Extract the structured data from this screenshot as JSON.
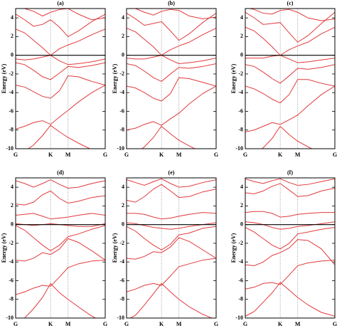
{
  "chart_data": [
    {
      "type": "line",
      "title": "(a)",
      "ylabel": "Energy (eV)",
      "color": "#e23a3c",
      "grid": true,
      "hline": 0,
      "x": [
        0,
        0.1,
        0.2,
        0.3,
        0.39,
        0.49,
        0.585,
        0.7,
        0.85,
        1
      ],
      "xlim": [
        0,
        1
      ],
      "xticks": [
        {
          "value": 0,
          "label": "G"
        },
        {
          "value": 0.39,
          "label": "K"
        },
        {
          "value": 0.585,
          "label": "M"
        },
        {
          "value": 1,
          "label": "G"
        }
      ],
      "ylim": [
        -10,
        5
      ],
      "yticks": [
        -10,
        -8,
        -6,
        -4,
        -2,
        0,
        2,
        4
      ],
      "series": [
        {
          "values": [
            -10.6,
            -10.3,
            -9.6,
            -8.6,
            -7.5,
            -8.2,
            -8.8,
            -9.4,
            -10.1,
            -10.6
          ]
        },
        {
          "values": [
            -7.9,
            -7.6,
            -7.2,
            -7.0,
            -7.4,
            -6.6,
            -5.9,
            -5.0,
            -4.0,
            -3.2
          ]
        },
        {
          "values": [
            -3.2,
            -3.4,
            -3.9,
            -4.4,
            -4.6,
            -3.8,
            -2.2,
            -2.3,
            -2.8,
            -3.2
          ]
        },
        {
          "values": [
            -0.8,
            -1.0,
            -1.6,
            -2.3,
            -2.6,
            -1.9,
            -1.2,
            -1.3,
            -1.1,
            -0.8
          ]
        },
        {
          "values": [
            -0.4,
            -0.5,
            -0.4,
            -0.2,
            0,
            -0.6,
            -1.0,
            -0.9,
            -0.7,
            -0.4
          ]
        },
        {
          "values": [
            2.8,
            2.4,
            1.6,
            0.8,
            0,
            0.7,
            1.1,
            1.5,
            2.2,
            2.8
          ]
        },
        {
          "values": [
            4.4,
            3.8,
            3.1,
            3.3,
            3.8,
            3.0,
            2.0,
            2.6,
            3.6,
            4.4
          ]
        },
        {
          "values": [
            5.2,
            5.0,
            4.7,
            4.2,
            4.6,
            4.9,
            5.0,
            4.4,
            3.8,
            4.0
          ]
        }
      ]
    },
    {
      "type": "line",
      "title": "(b)",
      "ylabel": "Energy (eV)",
      "color": "#e23a3c",
      "grid": true,
      "hline": 0,
      "x": [
        0,
        0.1,
        0.2,
        0.3,
        0.39,
        0.49,
        0.585,
        0.7,
        0.85,
        1
      ],
      "xlim": [
        0,
        1
      ],
      "xticks": [
        {
          "value": 0,
          "label": "G"
        },
        {
          "value": 0.39,
          "label": "K"
        },
        {
          "value": 0.585,
          "label": "M"
        },
        {
          "value": 1,
          "label": "G"
        }
      ],
      "ylim": [
        -10,
        5
      ],
      "yticks": [
        -10,
        -8,
        -6,
        -4,
        -2,
        0,
        2,
        4
      ],
      "series": [
        {
          "values": [
            -10.8,
            -10.5,
            -9.8,
            -8.8,
            -7.6,
            -8.4,
            -9.1,
            -9.7,
            -10.4,
            -10.8
          ]
        },
        {
          "values": [
            -8.0,
            -7.8,
            -7.4,
            -7.1,
            -7.5,
            -6.8,
            -6.2,
            -5.2,
            -4.1,
            -3.3
          ]
        },
        {
          "values": [
            -3.3,
            -3.5,
            -4.0,
            -4.6,
            -4.9,
            -4.1,
            -2.4,
            -2.5,
            -2.9,
            -3.3
          ]
        },
        {
          "values": [
            -0.9,
            -1.1,
            -1.7,
            -2.4,
            -2.8,
            -2.0,
            -1.3,
            -1.4,
            -1.2,
            -0.9
          ]
        },
        {
          "values": [
            -0.3,
            -0.4,
            -0.4,
            -0.2,
            0,
            -0.5,
            -0.9,
            -0.8,
            -0.6,
            -0.3
          ]
        },
        {
          "values": [
            2.9,
            2.5,
            1.7,
            0.9,
            0,
            0.6,
            1.0,
            1.4,
            2.2,
            2.9
          ]
        },
        {
          "values": [
            4.5,
            3.9,
            3.2,
            3.4,
            3.6,
            2.6,
            1.6,
            2.3,
            3.5,
            4.5
          ]
        },
        {
          "values": [
            5.2,
            5.0,
            4.6,
            4.3,
            4.7,
            4.9,
            4.8,
            4.2,
            3.9,
            4.1
          ]
        }
      ]
    },
    {
      "type": "line",
      "title": "(c)",
      "ylabel": "Energy (eV)",
      "color": "#e23a3c",
      "grid": true,
      "hline": 0,
      "x": [
        0,
        0.1,
        0.2,
        0.3,
        0.39,
        0.49,
        0.585,
        0.7,
        0.85,
        1
      ],
      "xlim": [
        0,
        1
      ],
      "xticks": [
        {
          "value": 0,
          "label": "G"
        },
        {
          "value": 0.39,
          "label": "K"
        },
        {
          "value": 0.585,
          "label": "M"
        },
        {
          "value": 1,
          "label": "G"
        }
      ],
      "ylim": [
        -10,
        5
      ],
      "yticks": [
        -10,
        -8,
        -6,
        -4,
        -2,
        0,
        2,
        4
      ],
      "series": [
        {
          "values": [
            -10.9,
            -10.6,
            -9.9,
            -8.9,
            -7.6,
            -8.5,
            -9.2,
            -9.8,
            -10.5,
            -10.9
          ]
        },
        {
          "values": [
            -8.2,
            -8.0,
            -7.6,
            -7.2,
            -7.4,
            -6.9,
            -6.4,
            -5.4,
            -4.2,
            -3.3
          ]
        },
        {
          "values": [
            -3.3,
            -3.6,
            -4.1,
            -4.7,
            -5.1,
            -4.2,
            -2.6,
            -2.6,
            -3.0,
            -3.3
          ]
        },
        {
          "values": [
            -1.0,
            -1.2,
            -1.8,
            -2.5,
            -3.0,
            -2.2,
            -1.4,
            -1.5,
            -1.3,
            -1.0
          ]
        },
        {
          "values": [
            -0.3,
            -0.3,
            -0.3,
            -0.1,
            0,
            -0.4,
            -0.8,
            -0.7,
            -0.5,
            -0.3
          ]
        },
        {
          "values": [
            3.0,
            2.6,
            1.8,
            0.9,
            0,
            0.6,
            1.0,
            1.4,
            2.3,
            3.0
          ]
        },
        {
          "values": [
            4.6,
            4.0,
            3.3,
            3.4,
            3.5,
            2.4,
            1.4,
            2.1,
            3.4,
            4.6
          ]
        },
        {
          "values": [
            5.1,
            4.9,
            4.5,
            4.4,
            4.8,
            4.9,
            4.6,
            4.0,
            3.7,
            3.9
          ]
        }
      ]
    },
    {
      "type": "line",
      "title": "(d)",
      "ylabel": "Energy (eV)",
      "color": "#e23a3c",
      "grid": true,
      "hline": 0,
      "x": [
        0,
        0.1,
        0.2,
        0.3,
        0.39,
        0.49,
        0.585,
        0.7,
        0.85,
        1
      ],
      "xlim": [
        0,
        1
      ],
      "xticks": [
        {
          "value": 0,
          "label": "G"
        },
        {
          "value": 0.39,
          "label": "K"
        },
        {
          "value": 0.585,
          "label": "M"
        },
        {
          "value": 1,
          "label": "G"
        }
      ],
      "ylim": [
        -10,
        5
      ],
      "yticks": [
        -10,
        -8,
        -6,
        -4,
        -2,
        0,
        2,
        4
      ],
      "series": [
        {
          "values": [
            -10.5,
            -10.0,
            -9.0,
            -7.8,
            -6.3,
            -7.3,
            -8.0,
            -8.8,
            -9.8,
            -10.5
          ]
        },
        {
          "values": [
            -7.5,
            -7.2,
            -6.8,
            -6.5,
            -6.6,
            -5.6,
            -4.6,
            -4.2,
            -3.9,
            -3.8
          ]
        },
        {
          "values": [
            -3.8,
            -3.9,
            -3.6,
            -3.0,
            -3.2,
            -2.6,
            -1.5,
            -1.9,
            -2.8,
            -3.8
          ]
        },
        {
          "values": [
            -0.1,
            -0.6,
            -1.4,
            -2.2,
            -2.8,
            -2.2,
            -1.3,
            -1.0,
            -0.5,
            -0.1
          ]
        },
        {
          "values": [
            0.1,
            0,
            -0.1,
            0,
            0.1,
            0,
            -0.1,
            -0.2,
            -0.2,
            0.1
          ]
        },
        {
          "values": [
            1.0,
            1.1,
            1.2,
            0.9,
            0.6,
            0.7,
            0.8,
            1.0,
            1.2,
            1.0
          ]
        },
        {
          "values": [
            2.2,
            2.1,
            2.4,
            3.2,
            3.6,
            2.8,
            2.3,
            2.5,
            2.9,
            3.1
          ]
        },
        {
          "values": [
            4.7,
            4.4,
            4.0,
            4.4,
            4.8,
            4.3,
            3.9,
            4.0,
            4.4,
            4.7
          ]
        }
      ]
    },
    {
      "type": "line",
      "title": "(e)",
      "ylabel": "Energy (eV)",
      "color": "#e23a3c",
      "grid": true,
      "hline": 0,
      "x": [
        0,
        0.1,
        0.2,
        0.3,
        0.39,
        0.49,
        0.585,
        0.7,
        0.85,
        1
      ],
      "xlim": [
        0,
        1
      ],
      "xticks": [
        {
          "value": 0,
          "label": "G"
        },
        {
          "value": 0.39,
          "label": "K"
        },
        {
          "value": 0.585,
          "label": "M"
        },
        {
          "value": 1,
          "label": "G"
        }
      ],
      "ylim": [
        -10,
        5
      ],
      "yticks": [
        -10,
        -8,
        -6,
        -4,
        -2,
        0,
        2,
        4
      ],
      "series": [
        {
          "values": [
            -10.2,
            -9.7,
            -8.6,
            -7.4,
            -6.3,
            -7.2,
            -8.0,
            -8.8,
            -9.6,
            -10.2
          ]
        },
        {
          "values": [
            -7.2,
            -6.9,
            -6.5,
            -6.3,
            -6.5,
            -5.5,
            -4.5,
            -4.2,
            -3.8,
            -3.6
          ]
        },
        {
          "values": [
            -3.6,
            -3.7,
            -3.4,
            -2.9,
            -3.0,
            -2.4,
            -1.4,
            -1.8,
            -2.7,
            -3.6
          ]
        },
        {
          "values": [
            -0.2,
            -0.7,
            -1.5,
            -2.2,
            -2.7,
            -2.1,
            -1.1,
            -0.9,
            -0.4,
            -0.2
          ]
        },
        {
          "values": [
            0.2,
            0.1,
            -0.1,
            -0.3,
            -0.4,
            -0.5,
            -0.4,
            -0.2,
            0,
            0.2
          ]
        },
        {
          "values": [
            1.2,
            1.2,
            1.1,
            0.8,
            0.6,
            0.7,
            0.9,
            1.1,
            1.3,
            1.2
          ]
        },
        {
          "values": [
            2.6,
            2.4,
            3.0,
            3.8,
            4.3,
            3.6,
            2.9,
            3.0,
            3.5,
            3.8
          ]
        },
        {
          "values": [
            4.8,
            4.5,
            4.2,
            4.6,
            4.9,
            4.4,
            4.0,
            4.1,
            4.5,
            4.8
          ]
        }
      ]
    },
    {
      "type": "line",
      "title": "(f)",
      "ylabel": "Energy (eV)",
      "color": "#e23a3c",
      "grid": true,
      "hline": 0,
      "x": [
        0,
        0.1,
        0.2,
        0.3,
        0.39,
        0.49,
        0.585,
        0.7,
        0.85,
        1
      ],
      "xlim": [
        0,
        1
      ],
      "xticks": [
        {
          "value": 0,
          "label": "G"
        },
        {
          "value": 0.39,
          "label": "K"
        },
        {
          "value": 0.585,
          "label": "M"
        },
        {
          "value": 1,
          "label": "G"
        }
      ],
      "ylim": [
        -10,
        5
      ],
      "yticks": [
        -10,
        -8,
        -6,
        -4,
        -2,
        0,
        2,
        4
      ],
      "series": [
        {
          "values": [
            -9.8,
            -9.3,
            -8.3,
            -7.3,
            -6.2,
            -7.0,
            -7.8,
            -8.6,
            -9.4,
            -9.8
          ]
        },
        {
          "values": [
            -6.9,
            -6.7,
            -6.3,
            -6.2,
            -6.4,
            -5.4,
            -4.4,
            -4.1,
            -3.9,
            -3.8
          ]
        },
        {
          "values": [
            -4.3,
            -4.4,
            -4.0,
            -3.3,
            -3.0,
            -2.5,
            -1.6,
            -1.7,
            -2.6,
            -4.3
          ]
        },
        {
          "values": [
            -0.3,
            -0.8,
            -1.5,
            -2.2,
            -2.6,
            -2.0,
            -1.0,
            -0.8,
            -0.5,
            -0.3
          ]
        },
        {
          "values": [
            0.3,
            0.2,
            0,
            -0.3,
            -0.5,
            -0.4,
            -0.2,
            -0.1,
            0.1,
            0.3
          ]
        },
        {
          "values": [
            1.3,
            1.4,
            1.4,
            1.2,
            0.8,
            0.9,
            1.1,
            1.2,
            1.3,
            1.3
          ]
        },
        {
          "values": [
            3.4,
            3.3,
            3.6,
            4.1,
            4.4,
            3.7,
            3.0,
            3.1,
            3.6,
            3.9
          ]
        },
        {
          "values": [
            4.9,
            4.6,
            4.4,
            4.7,
            4.9,
            4.5,
            4.2,
            4.3,
            4.6,
            4.9
          ]
        }
      ]
    }
  ]
}
